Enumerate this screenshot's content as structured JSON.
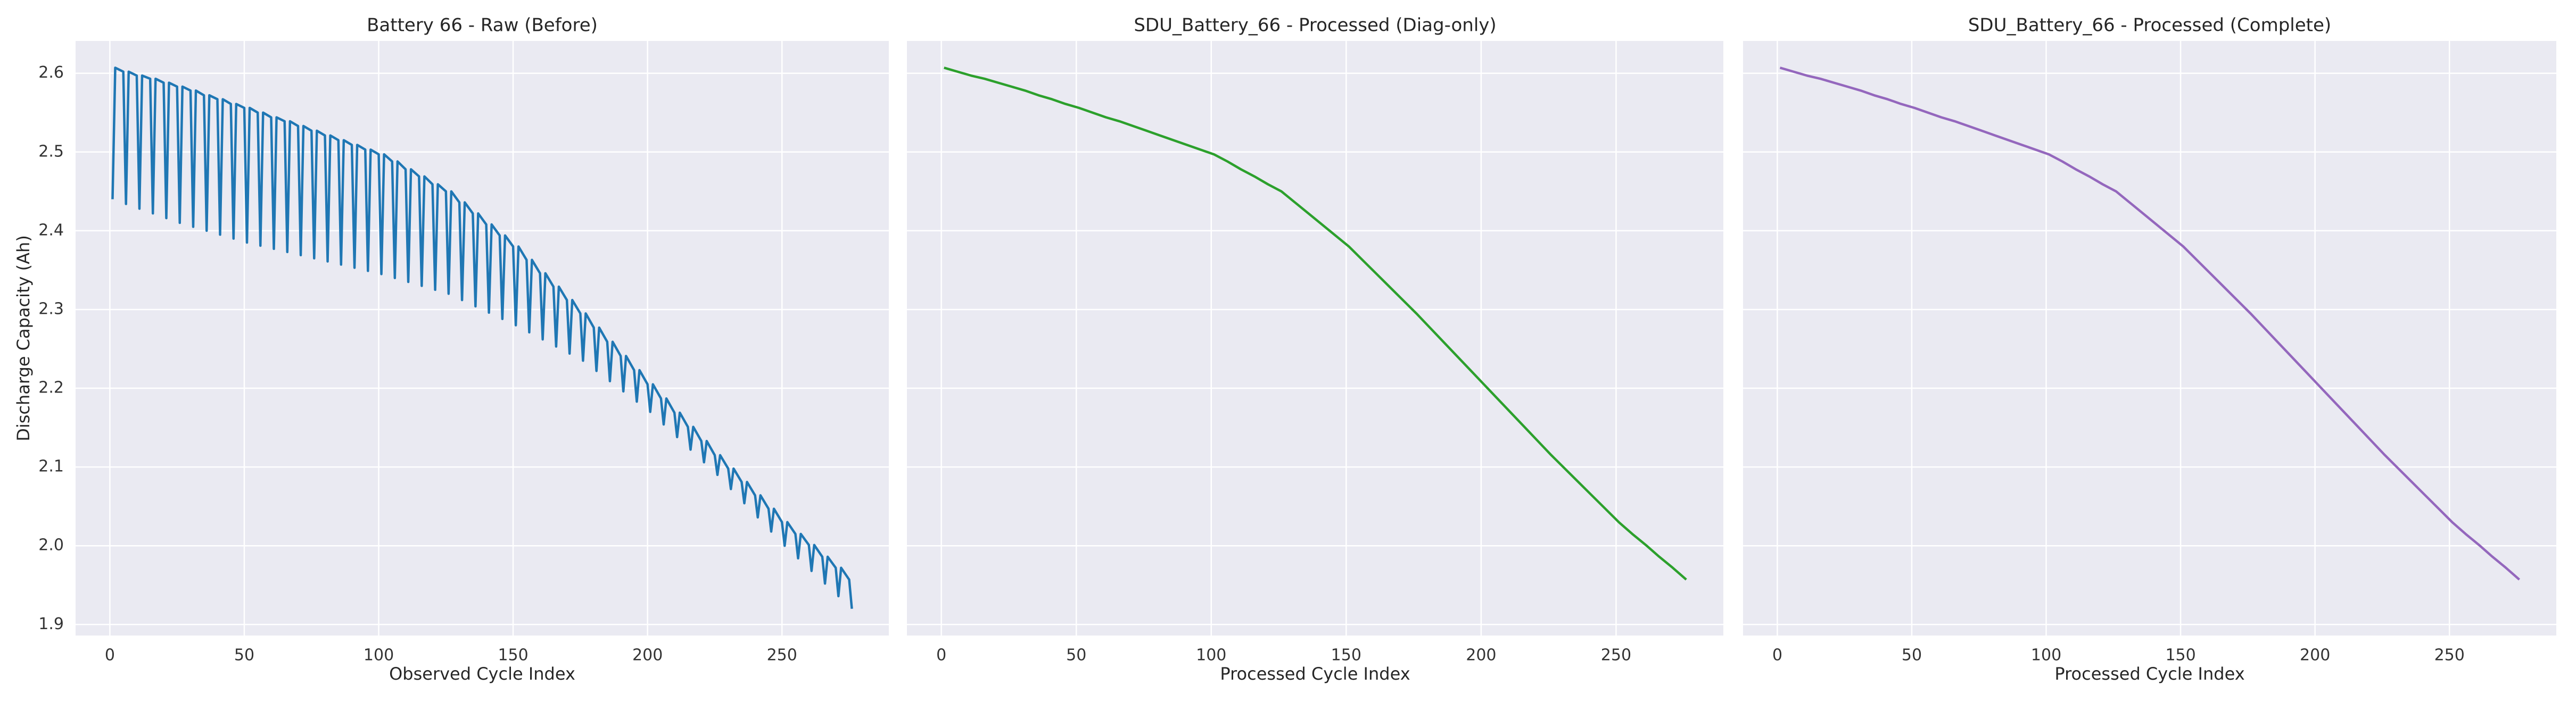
{
  "chart_data": [
    {
      "type": "line",
      "title": "Battery 66 - Raw (Before)",
      "xlabel": "Observed Cycle Index",
      "ylabel": "Discharge Capacity (Ah)",
      "color": "#1f77b4",
      "grid": true,
      "xlim": [
        -12.75,
        289.75
      ],
      "xticks": [
        0,
        50,
        100,
        150,
        200,
        250
      ],
      "ylim": [
        1.886,
        2.641
      ],
      "yticks": [
        1.9,
        {
          "value": 2,
          "label": "2.0"
        },
        2.1,
        2.2,
        2.3,
        2.4,
        2.5,
        2.6
      ],
      "x": [
        1,
        2,
        5,
        6,
        7,
        10,
        11,
        12,
        15,
        16,
        17,
        20,
        21,
        22,
        25,
        26,
        27,
        30,
        31,
        32,
        35,
        36,
        37,
        40,
        41,
        42,
        45,
        46,
        47,
        50,
        51,
        52,
        55,
        56,
        57,
        60,
        61,
        62,
        65,
        66,
        67,
        70,
        71,
        72,
        75,
        76,
        77,
        80,
        81,
        82,
        85,
        86,
        87,
        90,
        91,
        92,
        95,
        96,
        97,
        100,
        101,
        102,
        105,
        106,
        107,
        110,
        111,
        112,
        115,
        116,
        117,
        120,
        121,
        122,
        125,
        126,
        127,
        130,
        131,
        132,
        135,
        136,
        137,
        140,
        141,
        142,
        145,
        146,
        147,
        150,
        151,
        152,
        155,
        156,
        157,
        160,
        161,
        162,
        165,
        166,
        167,
        170,
        171,
        172,
        175,
        176,
        177,
        180,
        181,
        182,
        185,
        186,
        187,
        190,
        191,
        192,
        195,
        196,
        197,
        200,
        201,
        202,
        205,
        206,
        207,
        210,
        211,
        212,
        215,
        216,
        217,
        220,
        221,
        222,
        225,
        226,
        227,
        230,
        231,
        232,
        235,
        236,
        237,
        240,
        241,
        242,
        245,
        246,
        247,
        250,
        251,
        252,
        255,
        256,
        257,
        260,
        261,
        262,
        265,
        266,
        267,
        270,
        271,
        272,
        275,
        276
      ],
      "values": [
        2.44,
        2.607,
        2.602,
        2.434,
        2.602,
        2.597,
        2.428,
        2.597,
        2.593,
        2.422,
        2.593,
        2.588,
        2.416,
        2.588,
        2.583,
        2.41,
        2.583,
        2.578,
        2.405,
        2.578,
        2.572,
        2.4,
        2.572,
        2.567,
        2.395,
        2.567,
        2.561,
        2.39,
        2.561,
        2.556,
        2.385,
        2.556,
        2.55,
        2.381,
        2.55,
        2.544,
        2.377,
        2.544,
        2.539,
        2.373,
        2.539,
        2.533,
        2.369,
        2.533,
        2.527,
        2.365,
        2.527,
        2.521,
        2.361,
        2.521,
        2.515,
        2.357,
        2.515,
        2.509,
        2.353,
        2.509,
        2.503,
        2.349,
        2.503,
        2.497,
        2.345,
        2.497,
        2.488,
        2.34,
        2.488,
        2.478,
        2.335,
        2.478,
        2.469,
        2.33,
        2.469,
        2.459,
        2.325,
        2.459,
        2.45,
        2.32,
        2.45,
        2.436,
        2.312,
        2.436,
        2.422,
        2.304,
        2.422,
        2.408,
        2.296,
        2.408,
        2.394,
        2.288,
        2.394,
        2.38,
        2.28,
        2.38,
        2.363,
        2.271,
        2.363,
        2.346,
        2.262,
        2.346,
        2.329,
        2.253,
        2.329,
        2.312,
        2.244,
        2.312,
        2.295,
        2.235,
        2.295,
        2.277,
        2.222,
        2.277,
        2.259,
        2.209,
        2.259,
        2.241,
        2.196,
        2.241,
        2.223,
        2.183,
        2.223,
        2.205,
        2.17,
        2.205,
        2.187,
        2.154,
        2.187,
        2.169,
        2.138,
        2.169,
        2.151,
        2.122,
        2.151,
        2.133,
        2.106,
        2.133,
        2.115,
        2.09,
        2.115,
        2.098,
        2.072,
        2.098,
        2.081,
        2.054,
        2.081,
        2.064,
        2.036,
        2.064,
        2.047,
        2.018,
        2.047,
        2.03,
        2.0,
        2.03,
        2.015,
        1.984,
        2.015,
        2.001,
        1.968,
        2.001,
        1.986,
        1.952,
        1.986,
        1.972,
        1.936,
        1.972,
        1.957,
        1.92
      ]
    },
    {
      "type": "line",
      "title": "SDU_Battery_66 - Processed (Diag-only)",
      "xlabel": "Processed Cycle Index",
      "color": "#2ca02c",
      "grid": true,
      "sharey": true,
      "xlim": [
        -12.75,
        289.75
      ],
      "xticks": [
        0,
        50,
        100,
        150,
        200,
        250
      ],
      "ylim": [
        1.886,
        2.641
      ],
      "yticks": [
        1.9,
        2,
        2.1,
        2.2,
        2.3,
        2.4,
        2.5,
        2.6
      ],
      "x": [
        1,
        6,
        11,
        16,
        21,
        26,
        31,
        36,
        41,
        46,
        51,
        56,
        61,
        66,
        71,
        76,
        81,
        86,
        91,
        96,
        101,
        106,
        111,
        116,
        121,
        126,
        131,
        136,
        141,
        146,
        151,
        156,
        161,
        166,
        171,
        176,
        181,
        186,
        191,
        196,
        201,
        206,
        211,
        216,
        221,
        226,
        231,
        236,
        241,
        246,
        251,
        256,
        261,
        266,
        271,
        276
      ],
      "values": [
        2.607,
        2.602,
        2.597,
        2.593,
        2.588,
        2.583,
        2.578,
        2.572,
        2.567,
        2.561,
        2.556,
        2.55,
        2.544,
        2.539,
        2.533,
        2.527,
        2.521,
        2.515,
        2.509,
        2.503,
        2.497,
        2.488,
        2.478,
        2.469,
        2.459,
        2.45,
        2.436,
        2.422,
        2.408,
        2.394,
        2.38,
        2.363,
        2.346,
        2.329,
        2.312,
        2.295,
        2.277,
        2.259,
        2.241,
        2.223,
        2.205,
        2.187,
        2.169,
        2.151,
        2.133,
        2.115,
        2.098,
        2.081,
        2.064,
        2.047,
        2.03,
        2.015,
        2.001,
        1.986,
        1.972,
        1.957
      ]
    },
    {
      "type": "line",
      "title": "SDU_Battery_66 - Processed (Complete)",
      "xlabel": "Processed Cycle Index",
      "color": "#9467bd",
      "grid": true,
      "sharey": true,
      "xlim": [
        -12.75,
        289.75
      ],
      "xticks": [
        0,
        50,
        100,
        150,
        200,
        250
      ],
      "ylim": [
        1.886,
        2.641
      ],
      "yticks": [
        1.9,
        2,
        2.1,
        2.2,
        2.3,
        2.4,
        2.5,
        2.6
      ],
      "x": [
        1,
        6,
        11,
        16,
        21,
        26,
        31,
        36,
        41,
        46,
        51,
        56,
        61,
        66,
        71,
        76,
        81,
        86,
        91,
        96,
        101,
        106,
        111,
        116,
        121,
        126,
        131,
        136,
        141,
        146,
        151,
        156,
        161,
        166,
        171,
        176,
        181,
        186,
        191,
        196,
        201,
        206,
        211,
        216,
        221,
        226,
        231,
        236,
        241,
        246,
        251,
        256,
        261,
        266,
        271,
        276
      ],
      "values": [
        2.607,
        2.602,
        2.597,
        2.593,
        2.588,
        2.583,
        2.578,
        2.572,
        2.567,
        2.561,
        2.556,
        2.55,
        2.544,
        2.539,
        2.533,
        2.527,
        2.521,
        2.515,
        2.509,
        2.503,
        2.497,
        2.488,
        2.478,
        2.469,
        2.459,
        2.45,
        2.436,
        2.422,
        2.408,
        2.394,
        2.38,
        2.363,
        2.346,
        2.329,
        2.312,
        2.295,
        2.277,
        2.259,
        2.241,
        2.223,
        2.205,
        2.187,
        2.169,
        2.151,
        2.133,
        2.115,
        2.098,
        2.081,
        2.064,
        2.047,
        2.03,
        2.015,
        2.001,
        1.986,
        1.972,
        1.957
      ]
    }
  ]
}
